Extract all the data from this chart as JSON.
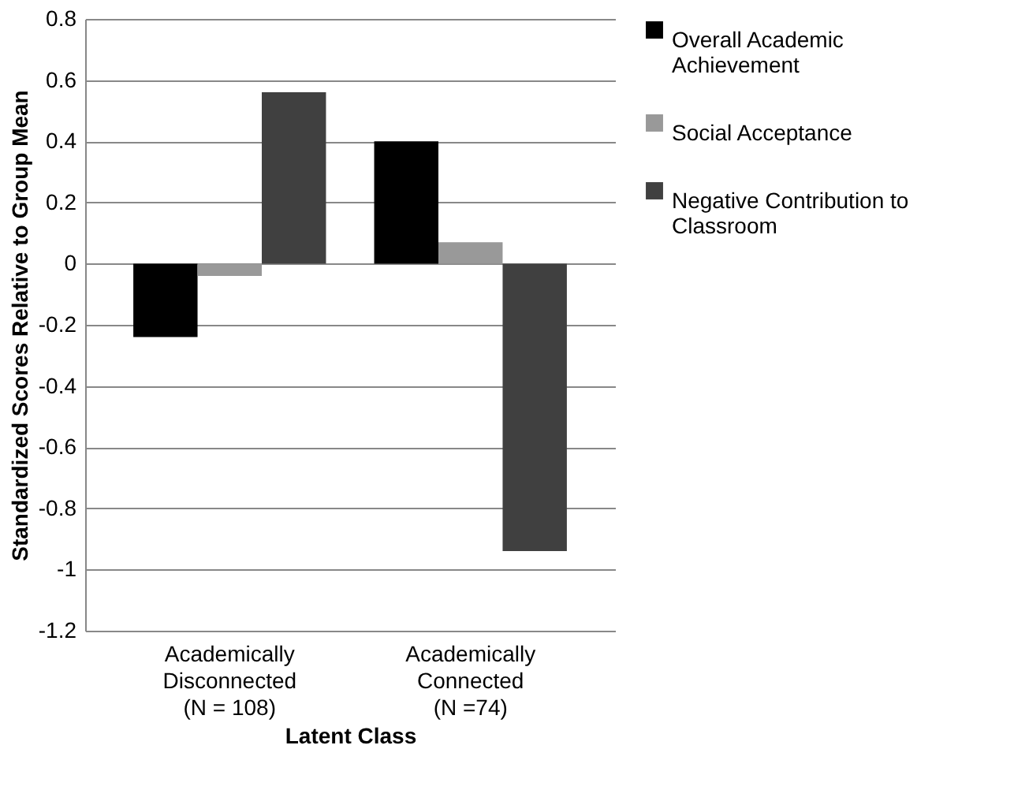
{
  "chart_data": {
    "type": "bar",
    "xlabel": "Latent Class",
    "ylabel": "Standardized Scores Relative to Group Mean",
    "categories": [
      "Academically Disconnected (N = 108)",
      "Academically Connected (N =74)"
    ],
    "series": [
      {
        "name": "Overall Academic Achievement",
        "color": "#000000",
        "values": [
          -0.24,
          0.4
        ]
      },
      {
        "name": "Social Acceptance",
        "color": "#999999",
        "values": [
          -0.04,
          0.07
        ]
      },
      {
        "name": "Negative Contribution to Classroom",
        "color": "#404040",
        "values": [
          0.56,
          -0.94
        ]
      }
    ],
    "ylim": [
      -1.2,
      0.8
    ],
    "yticks": [
      -1.2,
      -1,
      -0.8,
      -0.6,
      -0.4,
      -0.2,
      0,
      0.2,
      0.4,
      0.6,
      0.8
    ],
    "grid": "y",
    "legend": "top right"
  }
}
